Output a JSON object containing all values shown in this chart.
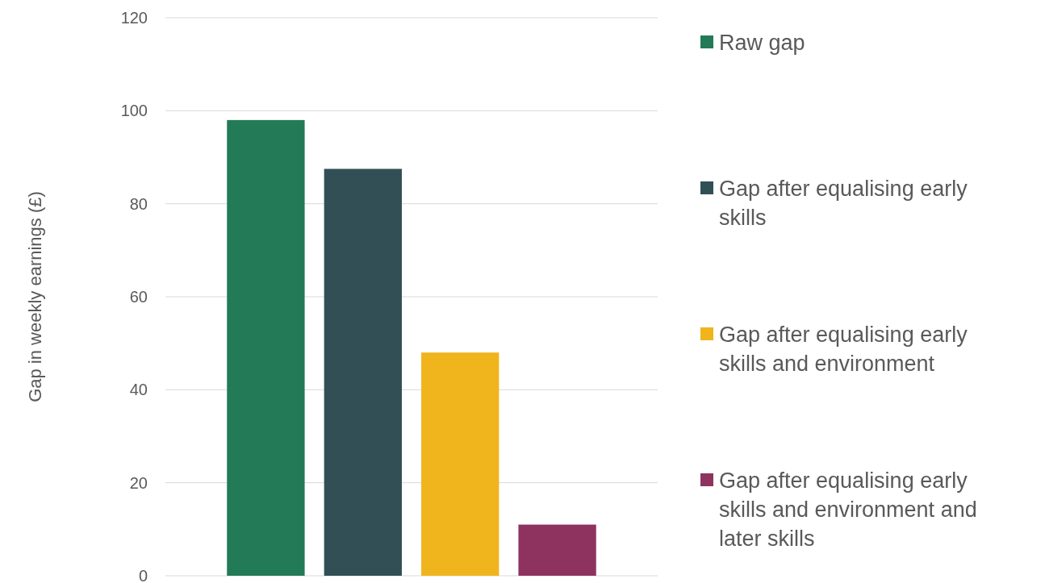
{
  "chart_data": {
    "type": "bar",
    "ylabel": "Gap in weekly earnings (£)",
    "categories": [
      null
    ],
    "series": [
      {
        "name": "Raw gap",
        "color": "#237a57",
        "values": [
          98
        ]
      },
      {
        "name": "Gap after equalising early skills",
        "color": "#324f55",
        "values": [
          87.5
        ]
      },
      {
        "name": "Gap after equalising early skills and environment",
        "color": "#f0b41c",
        "values": [
          48
        ]
      },
      {
        "name": "Gap after equalising early skills and environment and later skills",
        "color": "#8e3360",
        "values": [
          11
        ]
      }
    ],
    "ylim": [
      0,
      120
    ],
    "yticks": [
      0,
      20,
      40,
      60,
      80,
      100,
      120
    ],
    "grid": "y",
    "legend": "right"
  }
}
